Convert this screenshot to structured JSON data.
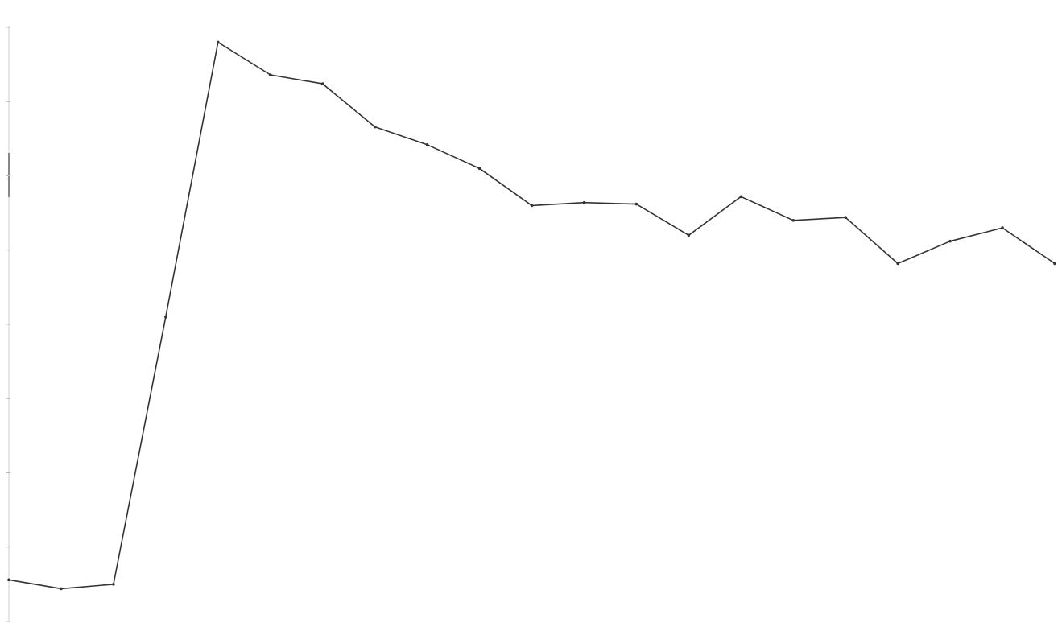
{
  "chart_data": {
    "type": "line",
    "title": "",
    "xlabel": "",
    "ylabel": "",
    "x": [
      1,
      2,
      3,
      4,
      5,
      6,
      7,
      8,
      9,
      10,
      11,
      12,
      13,
      14,
      15,
      16,
      17,
      18,
      19,
      20,
      21
    ],
    "series": [
      {
        "values": [
          28,
          22,
          25,
          205,
          390,
          368,
          362,
          333,
          321,
          305,
          280,
          282,
          281,
          260,
          286,
          270,
          272,
          241,
          256,
          265,
          241
        ]
      }
    ],
    "ylim": [
      0,
      400
    ],
    "grid": false,
    "legend": "none",
    "line_color": "#333333"
  }
}
